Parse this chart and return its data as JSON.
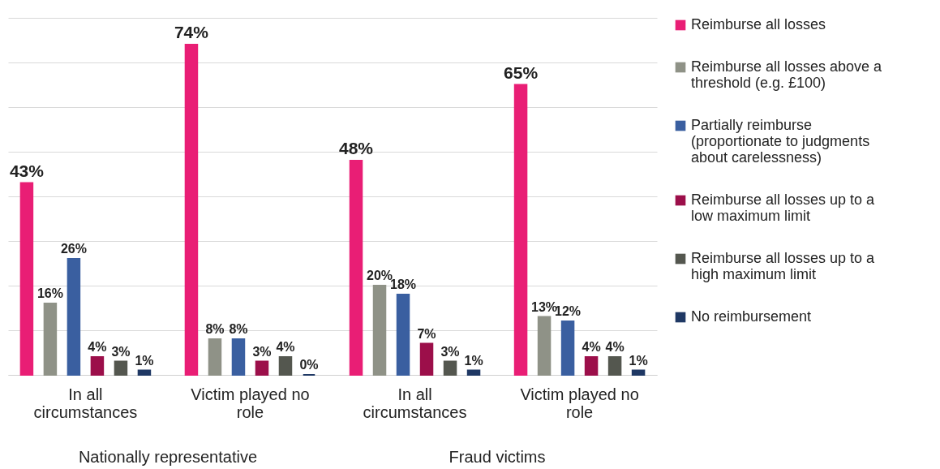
{
  "chart_data": {
    "type": "bar",
    "categories": [
      "In all circumstances",
      "Victim played no role",
      "In all circumstances",
      "Victim played no role"
    ],
    "annotations": [
      "Nationally representative",
      "Fraud victims"
    ],
    "ylim": [
      0,
      80
    ],
    "yticks": [
      0,
      10,
      20,
      30,
      40,
      50,
      60,
      70,
      80
    ],
    "grid": "y",
    "tick_labels": "x",
    "legend": "right",
    "series": [
      {
        "name": "Reimburse all losses",
        "color": "#e91e75",
        "values": [
          43,
          74,
          48,
          65
        ],
        "value_labels": [
          "43%",
          "74%",
          "48%",
          "65%"
        ]
      },
      {
        "name": "Reimburse all losses above a threshold (e.g. £100)",
        "color": "#8f9287",
        "values": [
          16,
          8,
          20,
          13
        ],
        "value_labels": [
          "16%",
          "8%",
          "20%",
          "13%"
        ]
      },
      {
        "name": "Partially reimburse (proportionate to judgments about carelessness)",
        "color": "#3a5fa0",
        "values": [
          26,
          8,
          18,
          12
        ],
        "value_labels": [
          "26%",
          "8%",
          "18%",
          "12%"
        ]
      },
      {
        "name": "Reimburse all losses up to a low maximum limit",
        "color": "#9c0f4a",
        "values": [
          4,
          3,
          7,
          4
        ],
        "value_labels": [
          "4%",
          "3%",
          "7%",
          "4%"
        ]
      },
      {
        "name": "Reimburse all losses up to a high maximum limit",
        "color": "#54574f",
        "values": [
          3,
          4,
          3,
          4
        ],
        "value_labels": [
          "3%",
          "4%",
          "3%",
          "4%"
        ]
      },
      {
        "name": "No reimbursement",
        "color": "#1f3864",
        "values": [
          1,
          0,
          1,
          1
        ],
        "value_labels": [
          "1%",
          "0%",
          "1%",
          "1%"
        ]
      }
    ]
  }
}
